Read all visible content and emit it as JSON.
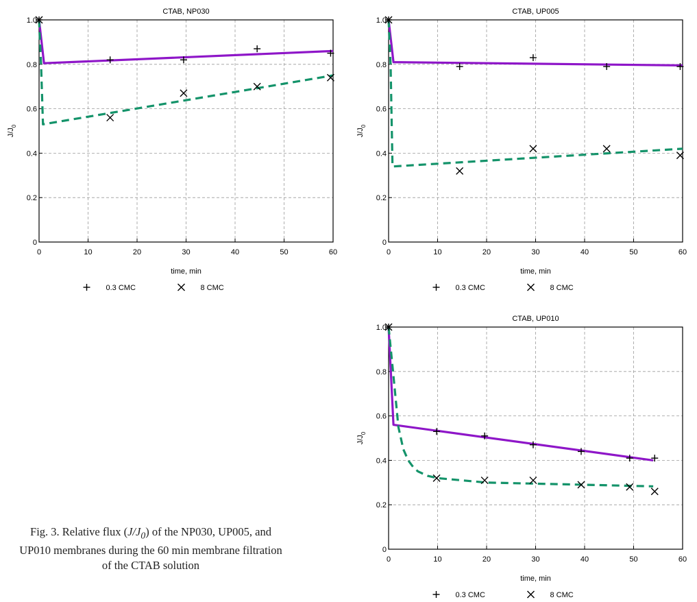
{
  "figure": {
    "caption": {
      "prefix": "Fig. 3. Relative flux (",
      "italic": "J/J",
      "sub": "0",
      "suffix": ") of the NP030, UP005, and UP010 membranes during the 60 min membrane filtration of the CTAB solution"
    }
  },
  "chart_data": [
    {
      "type": "line",
      "title": "CTAB, NP030",
      "xlabel": "time, min",
      "ylabel": "J/J",
      "ylabel_sub": "0",
      "xlim": [
        0,
        60
      ],
      "ylim": [
        0,
        1.0
      ],
      "x_ticks": [
        "0",
        "10",
        "20",
        "30",
        "40",
        "50",
        "60"
      ],
      "y_ticks": [
        "0",
        "0.2",
        "0.4",
        "0.6",
        "0.8",
        "1.0"
      ],
      "grid": true,
      "legend_position": "bottom",
      "series": [
        {
          "name": "0.3 CMC",
          "marker": "plus",
          "x": [
            0,
            14.5,
            29.5,
            44.5,
            59.5
          ],
          "y": [
            1.0,
            0.82,
            0.82,
            0.87,
            0.85
          ]
        },
        {
          "name": "8 CMC",
          "marker": "cross",
          "x": [
            0,
            14.5,
            29.5,
            44.5,
            59.5
          ],
          "y": [
            1.0,
            0.56,
            0.67,
            0.7,
            0.74
          ]
        }
      ],
      "fit_lines": [
        {
          "style": "solid",
          "color": "#8E16C8",
          "x": [
            0,
            1,
            60
          ],
          "y": [
            1.0,
            0.805,
            0.86
          ]
        },
        {
          "style": "dashed",
          "color": "#14936A",
          "x": [
            0,
            0.4,
            0.8,
            60
          ],
          "y": [
            1.0,
            0.8,
            0.53,
            0.75
          ]
        }
      ]
    },
    {
      "type": "line",
      "title": "CTAB, UP005",
      "xlabel": "time, min",
      "ylabel": "J/J",
      "ylabel_sub": "0",
      "xlim": [
        0,
        60
      ],
      "ylim": [
        0,
        1.0
      ],
      "x_ticks": [
        "0",
        "10",
        "20",
        "30",
        "40",
        "50",
        "60"
      ],
      "y_ticks": [
        "0",
        "0.2",
        "0.4",
        "0.6",
        "0.8",
        "1.0"
      ],
      "grid": true,
      "legend_position": "bottom",
      "series": [
        {
          "name": "0.3 CMC",
          "marker": "plus",
          "x": [
            0,
            14.5,
            29.5,
            44.5,
            59.5
          ],
          "y": [
            1.0,
            0.79,
            0.83,
            0.79,
            0.79
          ]
        },
        {
          "name": "8 CMC",
          "marker": "cross",
          "x": [
            0,
            14.5,
            29.5,
            44.5,
            59.5
          ],
          "y": [
            1.0,
            0.32,
            0.42,
            0.42,
            0.39
          ]
        }
      ],
      "fit_lines": [
        {
          "style": "solid",
          "color": "#8E16C8",
          "x": [
            0,
            1,
            60
          ],
          "y": [
            1.0,
            0.81,
            0.795
          ]
        },
        {
          "style": "dashed",
          "color": "#14936A",
          "x": [
            0,
            0.4,
            0.8,
            60
          ],
          "y": [
            1.0,
            0.8,
            0.34,
            0.42
          ]
        }
      ]
    },
    {
      "type": "line",
      "title": "CTAB, UP010",
      "xlabel": "time, min",
      "ylabel": "J/J",
      "ylabel_sub": "0",
      "xlim": [
        0,
        60
      ],
      "ylim": [
        0,
        1.0
      ],
      "x_ticks": [
        "0",
        "10",
        "20",
        "30",
        "40",
        "50",
        "60"
      ],
      "y_ticks": [
        "0",
        "0.2",
        "0.4",
        "0.6",
        "0.8",
        "1.0"
      ],
      "grid": true,
      "legend_position": "bottom",
      "series": [
        {
          "name": "0.3 CMC",
          "marker": "plus",
          "x": [
            0,
            9.8,
            19.6,
            29.5,
            39.3,
            49.2,
            54.3
          ],
          "y": [
            1.0,
            0.53,
            0.51,
            0.47,
            0.44,
            0.41,
            0.41
          ]
        },
        {
          "name": "8 CMC",
          "marker": "cross",
          "x": [
            0,
            9.8,
            19.6,
            29.5,
            39.3,
            49.2,
            54.3
          ],
          "y": [
            1.0,
            0.32,
            0.31,
            0.31,
            0.29,
            0.28,
            0.26
          ]
        }
      ],
      "fit_lines": [
        {
          "style": "solid",
          "color": "#8E16C8",
          "x": [
            0,
            1,
            54
          ],
          "y": [
            1.0,
            0.56,
            0.4
          ]
        },
        {
          "style": "dashed",
          "color": "#14936A",
          "x": [
            0,
            1,
            2,
            3,
            4,
            5,
            6,
            8,
            10,
            15,
            20,
            30,
            40,
            50,
            54
          ],
          "y": [
            1.0,
            0.78,
            0.55,
            0.45,
            0.4,
            0.37,
            0.35,
            0.33,
            0.32,
            0.31,
            0.3,
            0.295,
            0.29,
            0.285,
            0.283
          ]
        }
      ]
    }
  ]
}
